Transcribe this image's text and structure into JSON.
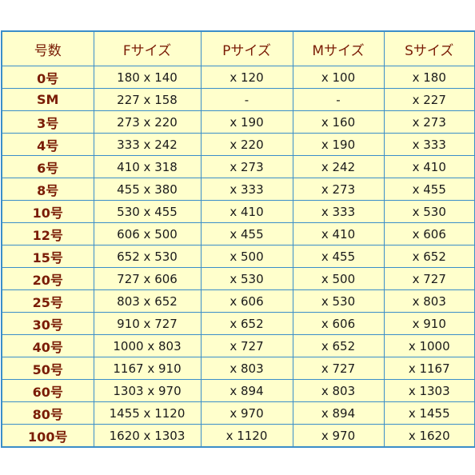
{
  "headers": [
    "号数",
    "Fサイズ",
    "Pサイズ",
    "Mサイズ",
    "Sサイズ"
  ],
  "rows": [
    {
      "no": "0号",
      "f": "180  x  140",
      "p": "x 120",
      "m": "x 100",
      "s": "x 180"
    },
    {
      "no": "SM",
      "f": "227  x  158",
      "p": "-",
      "m": "-",
      "s": "x 227"
    },
    {
      "no": "3号",
      "f": "273  x  220",
      "p": "x 190",
      "m": "x 160",
      "s": "x 273"
    },
    {
      "no": "4号",
      "f": "333  x  242",
      "p": "x 220",
      "m": "x 190",
      "s": "x 333"
    },
    {
      "no": "6号",
      "f": "410  x  318",
      "p": "x 273",
      "m": "x 242",
      "s": "x 410"
    },
    {
      "no": "8号",
      "f": "455  x  380",
      "p": "x 333",
      "m": "x 273",
      "s": "x 455"
    },
    {
      "no": "10号",
      "f": "530  x  455",
      "p": "x 410",
      "m": "x 333",
      "s": "x 530"
    },
    {
      "no": "12号",
      "f": "606  x  500",
      "p": "x 455",
      "m": "x 410",
      "s": "x 606"
    },
    {
      "no": "15号",
      "f": "652  x  530",
      "p": "x 500",
      "m": "x 455",
      "s": "x 652"
    },
    {
      "no": "20号",
      "f": "727  x  606",
      "p": "x 530",
      "m": "x 500",
      "s": "x 727"
    },
    {
      "no": "25号",
      "f": "803  x  652",
      "p": "x 606",
      "m": "x 530",
      "s": "x 803"
    },
    {
      "no": "30号",
      "f": "910  x  727",
      "p": "x 652",
      "m": "x 606",
      "s": "x 910"
    },
    {
      "no": "40号",
      "f": "1000  x  803",
      "p": "x 727",
      "m": "x 652",
      "s": "x 1000"
    },
    {
      "no": "50号",
      "f": "1167  x  910",
      "p": "x 803",
      "m": "x 727",
      "s": "x 1167"
    },
    {
      "no": "60号",
      "f": "1303  x  970",
      "p": "x 894",
      "m": "x 803",
      "s": "x 1303"
    },
    {
      "no": "80号",
      "f": "1455  x  1120",
      "p": "x 970",
      "m": "x 894",
      "s": "x 1455"
    },
    {
      "no": "100号",
      "f": "1620  x  1303",
      "p": "x 1120",
      "m": "x 970",
      "s": "x 1620"
    }
  ],
  "colors": {
    "header_text": "#7a1c05",
    "cell_background": "#ffffcc",
    "border": "#3a8ec9"
  }
}
